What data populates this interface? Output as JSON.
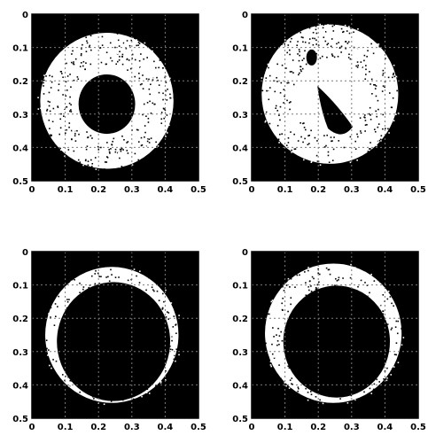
{
  "chart_data": [
    {
      "type": "heatmap",
      "panel": "top-left",
      "x_range": [
        0,
        0.5
      ],
      "y_range": [
        0,
        0.5
      ],
      "y_inverted": true,
      "grid": true,
      "x_ticks": [
        "0",
        "0.1",
        "0.2",
        "0.3",
        "0.4",
        "0.5"
      ],
      "y_ticks": [
        "0",
        "0.1",
        "0.2",
        "0.3",
        "0.4",
        "0.5"
      ],
      "background": "#000000",
      "foreground": "#ffffff",
      "bright_region": {
        "shape": "disc",
        "center": [
          0.225,
          0.26
        ],
        "radius": 0.2
      },
      "dark_core": {
        "shape": "disc",
        "center": [
          0.225,
          0.27
        ],
        "radius": 0.085
      }
    },
    {
      "type": "heatmap",
      "panel": "top-right",
      "x_range": [
        0,
        0.5
      ],
      "y_range": [
        0,
        0.5
      ],
      "y_inverted": true,
      "grid": true,
      "x_ticks": [
        "0",
        "0.1",
        "0.2",
        "0.3",
        "0.4",
        "0.5"
      ],
      "y_ticks": [
        "0",
        "0.1",
        "0.2",
        "0.3",
        "0.4",
        "0.5"
      ],
      "background": "#000000",
      "foreground": "#ffffff",
      "bright_region": {
        "shape": "disc",
        "center": [
          0.235,
          0.24
        ],
        "radius": 0.205
      },
      "dark_core": {
        "shape": "streak",
        "center": [
          0.245,
          0.29
        ],
        "radius": 0.06
      }
    },
    {
      "type": "heatmap",
      "panel": "bottom-left",
      "x_range": [
        0,
        0.5
      ],
      "y_range": [
        0,
        0.5
      ],
      "y_inverted": true,
      "grid": true,
      "x_ticks": [
        "0",
        "0.1",
        "0.2",
        "0.3",
        "0.4",
        "0.5"
      ],
      "y_ticks": [
        "0",
        "0.1",
        "0.2",
        "0.3",
        "0.4",
        "0.5"
      ],
      "background": "#000000",
      "foreground": "#ffffff",
      "bright_region": {
        "shape": "ring",
        "center": [
          0.24,
          0.25
        ],
        "radius": 0.2
      },
      "dark_core": {
        "shape": "disc",
        "center": [
          0.245,
          0.27
        ],
        "radius": 0.17
      }
    },
    {
      "type": "heatmap",
      "panel": "bottom-right",
      "x_range": [
        0,
        0.5
      ],
      "y_range": [
        0,
        0.5
      ],
      "y_inverted": true,
      "grid": true,
      "x_ticks": [
        "0",
        "0.1",
        "0.2",
        "0.3",
        "0.4",
        "0.5"
      ],
      "y_ticks": [
        "0",
        "0.1",
        "0.2",
        "0.3",
        "0.4",
        "0.5"
      ],
      "background": "#000000",
      "foreground": "#ffffff",
      "bright_region": {
        "shape": "ring",
        "center": [
          0.245,
          0.245
        ],
        "radius": 0.205
      },
      "dark_core": {
        "shape": "disc",
        "center": [
          0.255,
          0.27
        ],
        "radius": 0.16
      }
    }
  ]
}
